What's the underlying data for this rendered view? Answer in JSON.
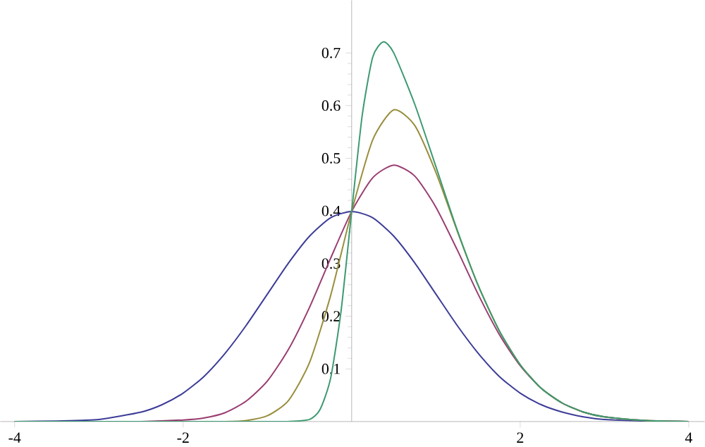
{
  "chart_data": {
    "type": "line",
    "xlim": [
      -4.17,
      4.19
    ],
    "ylim": [
      0,
      0.8
    ],
    "xticks": [
      -4,
      -2,
      2,
      4
    ],
    "yticks": [
      0.1,
      0.2,
      0.3,
      0.4,
      0.5,
      0.6,
      0.7
    ],
    "marker": "none",
    "series": [
      {
        "color": "#3d3d99",
        "x": [
          -4,
          -3.5,
          -3,
          -2.5,
          -2.25,
          -2,
          -1.75,
          -1.5,
          -1.25,
          -1,
          -0.75,
          -0.5,
          -0.25,
          0,
          0.25,
          0.5,
          0.75,
          1,
          1.25,
          1.5,
          1.75,
          2,
          2.25,
          2.5,
          2.75,
          3,
          3.5,
          4
        ],
        "values": [
          0,
          0.001,
          0.004,
          0.018,
          0.032,
          0.054,
          0.086,
          0.13,
          0.183,
          0.242,
          0.301,
          0.352,
          0.387,
          0.399,
          0.387,
          0.352,
          0.301,
          0.242,
          0.183,
          0.13,
          0.086,
          0.054,
          0.032,
          0.018,
          0.009,
          0.004,
          0.001,
          0
        ]
      },
      {
        "color": "#993d71",
        "x": [
          -4,
          -3,
          -2.5,
          -2,
          -1.75,
          -1.5,
          -1.25,
          -1,
          -0.75,
          -0.5,
          -0.25,
          0,
          0.25,
          0.5,
          0.75,
          1,
          1.25,
          1.5,
          1.75,
          2,
          2.25,
          2.5,
          2.75,
          3,
          3.5,
          4
        ],
        "values": [
          0,
          0,
          0,
          0.003,
          0.007,
          0.017,
          0.039,
          0.077,
          0.137,
          0.217,
          0.31,
          0.399,
          0.463,
          0.487,
          0.466,
          0.407,
          0.327,
          0.242,
          0.166,
          0.106,
          0.063,
          0.035,
          0.018,
          0.009,
          0.002,
          0
        ]
      },
      {
        "color": "#998e3d",
        "x": [
          -4,
          -2,
          -1.5,
          -1.25,
          -1,
          -0.75,
          -0.5,
          -0.25,
          0,
          0.25,
          0.5,
          0.75,
          1,
          1.25,
          1.5,
          1.75,
          2,
          2.25,
          2.5,
          2.75,
          3,
          3.5,
          4
        ],
        "values": [
          0,
          0,
          0,
          0.002,
          0.011,
          0.04,
          0.112,
          0.239,
          0.399,
          0.535,
          0.592,
          0.562,
          0.473,
          0.363,
          0.259,
          0.173,
          0.108,
          0.063,
          0.035,
          0.018,
          0.009,
          0.002,
          0
        ]
      },
      {
        "color": "#3d9971",
        "x": [
          -4,
          -1,
          -0.75,
          -0.5,
          -0.375,
          -0.25,
          -0.125,
          0,
          0.125,
          0.25,
          0.375,
          0.5,
          0.75,
          1,
          1.25,
          1.5,
          1.75,
          2,
          2.25,
          2.5,
          2.75,
          3,
          3.5,
          4
        ],
        "values": [
          0,
          0,
          0,
          0.004,
          0.023,
          0.082,
          0.211,
          0.399,
          0.581,
          0.692,
          0.721,
          0.7,
          0.602,
          0.484,
          0.365,
          0.259,
          0.173,
          0.108,
          0.063,
          0.035,
          0.018,
          0.009,
          0.002,
          0
        ]
      }
    ]
  }
}
